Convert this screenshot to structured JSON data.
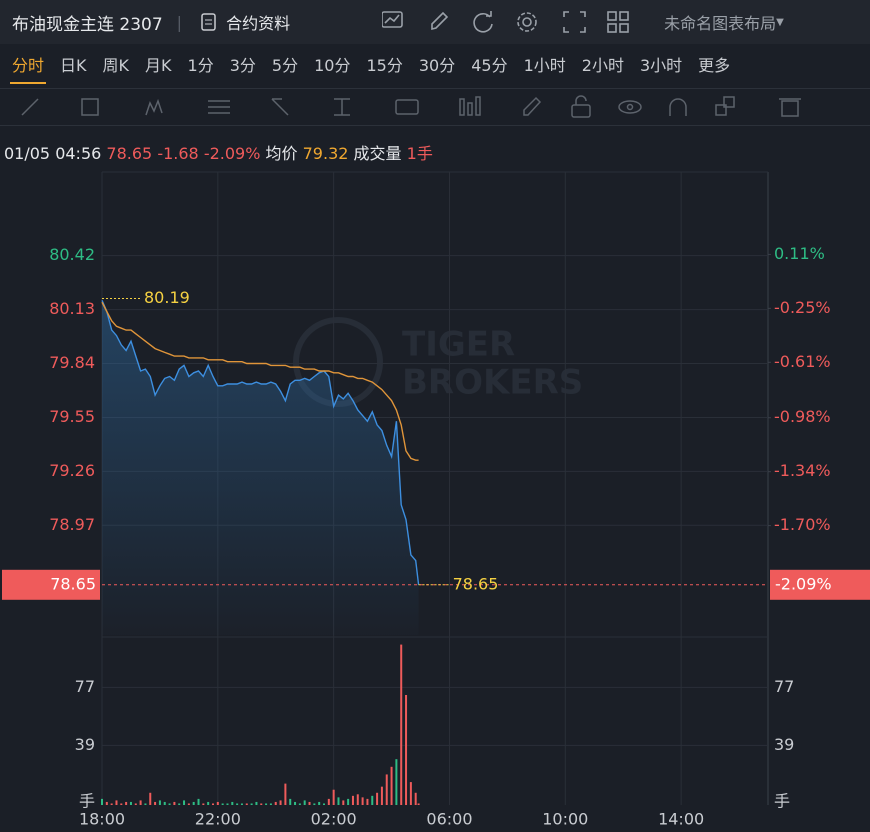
{
  "header": {
    "title": "布油现金主连 2307",
    "contract_info": "合约资料",
    "layout_name": "未命名图表布局"
  },
  "timeframes": [
    "分时",
    "日K",
    "周K",
    "月K",
    "1分",
    "3分",
    "5分",
    "10分",
    "15分",
    "30分",
    "45分",
    "1小时",
    "2小时",
    "3小时",
    "更多"
  ],
  "info_bar": {
    "datetime": "01/05 04:56",
    "price": "78.65",
    "change": "-1.68",
    "change_pct": "-2.09%",
    "avg_label": "均价",
    "avg_price": "79.32",
    "volume_label": "成交量",
    "volume": "1手"
  },
  "watermark": [
    "TIGER",
    "BROKERS"
  ],
  "chart_data": {
    "type": "line",
    "x": [
      "18:00",
      "18:10",
      "18:20",
      "18:30",
      "18:40",
      "18:50",
      "19:00",
      "19:10",
      "19:20",
      "19:30",
      "19:40",
      "19:50",
      "20:00",
      "20:10",
      "20:20",
      "20:30",
      "20:40",
      "20:50",
      "21:00",
      "21:10",
      "21:20",
      "21:30",
      "21:40",
      "21:50",
      "22:00",
      "22:10",
      "22:20",
      "22:30",
      "22:40",
      "22:50",
      "23:00",
      "23:10",
      "23:20",
      "23:30",
      "23:40",
      "23:50",
      "00:00",
      "00:10",
      "00:20",
      "00:30",
      "00:40",
      "00:50",
      "01:00",
      "01:10",
      "01:20",
      "01:30",
      "01:40",
      "01:50",
      "02:00",
      "02:10",
      "02:20",
      "02:30",
      "02:40",
      "02:50",
      "03:00",
      "03:10",
      "03:20",
      "03:30",
      "03:40",
      "03:50",
      "04:00",
      "04:10",
      "04:20",
      "04:30",
      "04:40",
      "04:50",
      "04:56"
    ],
    "series": [
      {
        "color": "#3d8fe0",
        "values": [
          80.18,
          80.12,
          80.02,
          79.99,
          79.94,
          79.91,
          79.96,
          79.88,
          79.8,
          79.81,
          79.77,
          79.67,
          79.72,
          79.76,
          79.77,
          79.75,
          79.81,
          79.83,
          79.77,
          79.79,
          79.8,
          79.77,
          79.83,
          79.77,
          79.72,
          79.72,
          79.73,
          79.73,
          79.73,
          79.74,
          79.73,
          79.73,
          79.74,
          79.73,
          79.73,
          79.74,
          79.73,
          79.69,
          79.64,
          79.73,
          79.75,
          79.75,
          79.76,
          79.75,
          79.77,
          79.79,
          79.8,
          79.77,
          79.61,
          79.67,
          79.65,
          79.68,
          79.64,
          79.59,
          79.56,
          79.53,
          79.58,
          79.51,
          79.48,
          79.4,
          79.34,
          79.53,
          79.08,
          79.0,
          78.81,
          78.78,
          78.65
        ]
      },
      {
        "color": "#e0953a",
        "values": [
          80.17,
          80.12,
          80.07,
          80.04,
          80.03,
          80.02,
          80.02,
          80.0,
          79.98,
          79.96,
          79.94,
          79.92,
          79.91,
          79.9,
          79.89,
          79.88,
          79.88,
          79.88,
          79.87,
          79.87,
          79.87,
          79.87,
          79.86,
          79.86,
          79.86,
          79.86,
          79.85,
          79.85,
          79.85,
          79.85,
          79.84,
          79.84,
          79.84,
          79.84,
          79.84,
          79.83,
          79.83,
          79.83,
          79.83,
          79.82,
          79.82,
          79.82,
          79.81,
          79.81,
          79.81,
          79.8,
          79.8,
          79.8,
          79.79,
          79.79,
          79.78,
          79.77,
          79.77,
          79.76,
          79.76,
          79.75,
          79.74,
          79.72,
          79.7,
          79.67,
          79.64,
          79.59,
          79.51,
          79.37,
          79.33,
          79.32,
          79.32
        ]
      }
    ],
    "xlim": [
      "18:00",
      "17:00"
    ],
    "xticks": [
      "18:00",
      "22:00",
      "02:00",
      "06:00",
      "10:00",
      "14:00"
    ],
    "ylim": [
      78.38,
      80.87
    ],
    "yticks": [
      80.42,
      80.13,
      79.84,
      79.55,
      79.26,
      78.97
    ],
    "y2lim": [
      -2.43,
      0.66
    ],
    "y2ticks": [
      {
        "value": 0.11,
        "label": "0.11%"
      },
      {
        "value": -0.25,
        "label": "-0.25%"
      },
      {
        "value": -0.61,
        "label": "-0.61%"
      },
      {
        "value": -0.98,
        "label": "-0.98%"
      },
      {
        "value": -1.34,
        "label": "-1.34%"
      },
      {
        "value": -1.7,
        "label": "-1.70%"
      }
    ],
    "high_price": 80.19,
    "last_price": 78.65,
    "last_change_pct": {
      "value": -2.09,
      "label": "-2.09%"
    },
    "up_color": "#2ebd85",
    "down_color": "#ef5b5b",
    "grid": true,
    "volume": {
      "values": [
        4,
        2,
        1,
        3,
        1,
        2,
        2,
        1,
        3,
        1,
        8,
        2,
        3,
        2,
        1,
        2,
        1,
        3,
        1,
        2,
        4,
        1,
        2,
        1,
        2,
        1,
        1,
        2,
        1,
        1,
        1,
        1,
        2,
        1,
        1,
        1,
        2,
        3,
        14,
        4,
        2,
        1,
        3,
        2,
        1,
        2,
        1,
        4,
        10,
        5,
        3,
        4,
        6,
        7,
        5,
        4,
        6,
        8,
        12,
        20,
        25,
        30,
        105,
        72,
        15,
        8,
        1
      ],
      "ylim": [
        0,
        108
      ],
      "yticks": [
        77,
        39
      ],
      "unit": "手"
    }
  }
}
